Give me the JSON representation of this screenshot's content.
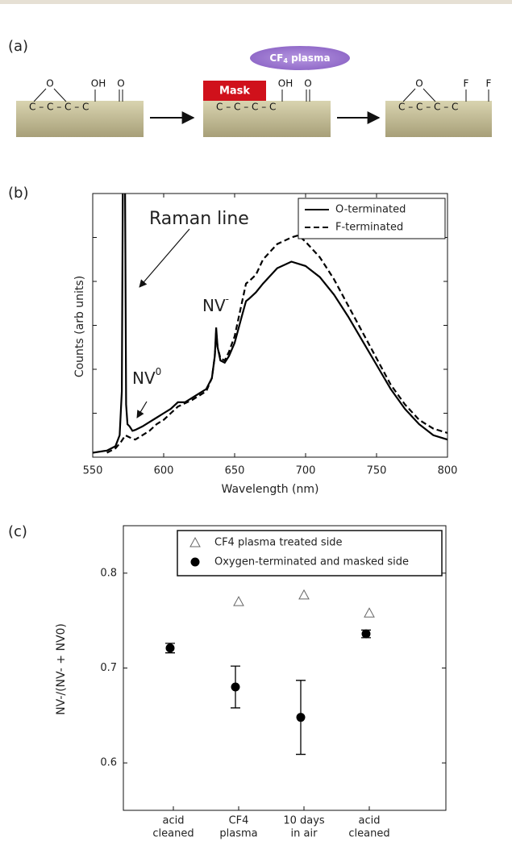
{
  "diagram": {
    "label": "(a)",
    "plasma": {
      "base": "CF",
      "sub": "4",
      "rest": " plasma"
    },
    "mask": "Mask",
    "blocks": [
      {
        "chain": "C – C – C – C",
        "groups": [
          "O",
          "OH",
          "O"
        ]
      },
      {
        "chain": "C – C – C – C",
        "groups": [
          "OH",
          "O"
        ]
      },
      {
        "chain": "C – C – C – C",
        "groups": [
          "O",
          "F",
          "F"
        ]
      }
    ]
  },
  "chart_data": [
    {
      "type": "line",
      "label": "(b)",
      "x_label": "Wavelength (nm)",
      "y_label": "Counts (arb units)",
      "xlim": [
        550,
        800
      ],
      "xticks": [
        550,
        600,
        650,
        700,
        750,
        800
      ],
      "ylim": [
        0,
        6
      ],
      "yticks_unlabeled": [
        1,
        2,
        3,
        4,
        5
      ],
      "legend": "upper right",
      "annotations": [
        {
          "text": "Raman line"
        },
        {
          "base": "NV",
          "sup": "-"
        },
        {
          "base": "NV",
          "sup": "0"
        }
      ],
      "series": [
        {
          "name": "O-terminated",
          "color": "#000000",
          "line_style": "solid",
          "x": [
            550,
            560,
            566,
            569,
            570.5,
            571.5,
            572.5,
            573.5,
            574.5,
            576,
            578,
            580,
            585,
            590,
            595,
            600,
            605,
            610,
            615,
            620,
            625,
            630,
            634,
            636,
            637,
            638,
            640,
            643,
            646,
            650,
            655,
            658,
            660,
            665,
            670,
            680,
            690,
            700,
            710,
            720,
            730,
            740,
            750,
            760,
            770,
            780,
            790,
            800
          ],
          "values": [
            0.1,
            0.15,
            0.25,
            0.5,
            1.5,
            8,
            8,
            1.2,
            0.75,
            0.7,
            0.6,
            0.62,
            0.7,
            0.8,
            0.9,
            1.0,
            1.1,
            1.25,
            1.25,
            1.35,
            1.45,
            1.55,
            1.8,
            2.3,
            2.95,
            2.5,
            2.2,
            2.15,
            2.3,
            2.6,
            3.2,
            3.55,
            3.6,
            3.75,
            3.95,
            4.3,
            4.45,
            4.35,
            4.1,
            3.7,
            3.2,
            2.65,
            2.1,
            1.55,
            1.1,
            0.75,
            0.5,
            0.4
          ]
        },
        {
          "name": "F-terminated",
          "color": "#000000",
          "line_style": "dashed",
          "x": [
            560,
            566,
            570,
            573,
            576,
            580,
            585,
            590,
            595,
            600,
            605,
            610,
            620,
            630,
            634,
            636,
            637,
            638,
            640,
            643,
            646,
            650,
            655,
            658,
            660,
            665,
            670,
            680,
            690,
            695,
            700,
            710,
            720,
            730,
            740,
            750,
            760,
            770,
            780,
            790,
            800
          ],
          "values": [
            0.1,
            0.2,
            0.35,
            0.5,
            0.45,
            0.4,
            0.5,
            0.6,
            0.75,
            0.85,
            1.0,
            1.15,
            1.3,
            1.5,
            1.8,
            2.3,
            2.85,
            2.5,
            2.25,
            2.2,
            2.4,
            2.75,
            3.5,
            3.95,
            4.0,
            4.15,
            4.5,
            4.85,
            5.0,
            5.05,
            4.9,
            4.55,
            4.05,
            3.45,
            2.85,
            2.25,
            1.65,
            1.2,
            0.85,
            0.65,
            0.55
          ]
        }
      ]
    },
    {
      "type": "scatter",
      "label": "(c)",
      "y_label": "NV-/(NV- + NV0)",
      "categories": [
        [
          "acid",
          "cleaned"
        ],
        [
          "CF4",
          "plasma"
        ],
        [
          "10 days",
          "in air"
        ],
        [
          "acid",
          "cleaned"
        ]
      ],
      "ylim": [
        0.55,
        0.85
      ],
      "yticks": [
        0.6,
        0.7,
        0.8
      ],
      "legend": "upper center",
      "series": [
        {
          "name": "CF4 plasma treated side",
          "color": "#666666",
          "marker": "triangle-open",
          "values": [
            null,
            0.77,
            0.777,
            0.758
          ]
        },
        {
          "name": "Oxygen-terminated and masked side",
          "color": "#000000",
          "marker": "circle",
          "values": [
            0.721,
            0.68,
            0.648,
            0.736
          ],
          "errors": [
            0.005,
            0.022,
            0.039,
            0.004
          ]
        }
      ]
    }
  ]
}
